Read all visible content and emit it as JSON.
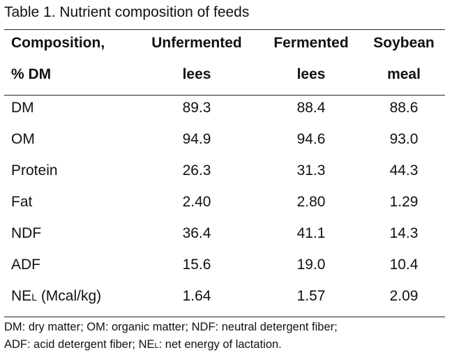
{
  "title": "Table 1. Nutrient composition of feeds",
  "table": {
    "headers": [
      {
        "line1": "Composition,",
        "line2": "% DM"
      },
      {
        "line1": "Unfermented",
        "line2": "lees"
      },
      {
        "line1": "Fermented",
        "line2": "lees"
      },
      {
        "line1": "Soybean",
        "line2": "meal"
      }
    ],
    "rows": [
      {
        "label": "DM",
        "values": [
          "89.3",
          "88.4",
          "88.6"
        ]
      },
      {
        "label": "OM",
        "values": [
          "94.9",
          "94.6",
          "93.0"
        ]
      },
      {
        "label": "Protein",
        "values": [
          "26.3",
          "31.3",
          "44.3"
        ]
      },
      {
        "label": "Fat",
        "values": [
          "2.40",
          "2.80",
          "1.29"
        ]
      },
      {
        "label": "NDF",
        "values": [
          "36.4",
          "41.1",
          "14.3"
        ]
      },
      {
        "label": "ADF",
        "values": [
          "15.6",
          "19.0",
          "10.4"
        ]
      },
      {
        "label_main": "NE",
        "label_sub": "L",
        "label_rest": " (Mcal/kg)",
        "values": [
          "1.64",
          "1.57",
          "2.09"
        ]
      }
    ]
  },
  "footnote": {
    "line1": "DM: dry matter; OM: organic matter; NDF: neutral detergent fiber;",
    "line2_a": "ADF: acid detergent fiber; NE",
    "line2_sub": "L",
    "line2_b": ": net energy of lactation."
  }
}
